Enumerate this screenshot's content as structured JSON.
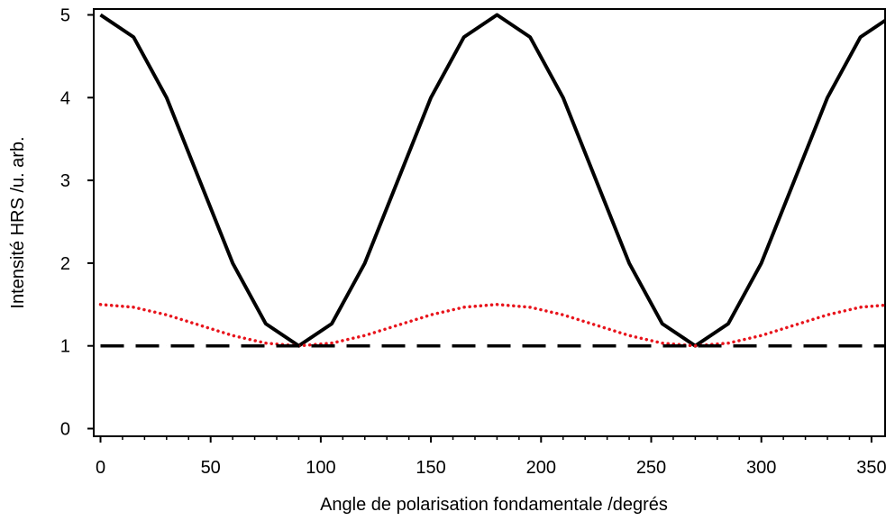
{
  "chart_data": {
    "type": "line",
    "title": "",
    "xlabel": "Angle de polarisation fondamentale /degrés",
    "ylabel": "Intensité HRS /u. arb.",
    "xlim": [
      -2,
      355
    ],
    "ylim": [
      -0.1,
      5.05
    ],
    "xticks": [
      0,
      50,
      100,
      150,
      200,
      250,
      300,
      350
    ],
    "yticks": [
      0,
      1,
      2,
      3,
      4,
      5
    ],
    "grid": false,
    "legend": "none",
    "x": [
      0,
      15,
      30,
      45,
      60,
      75,
      90,
      105,
      120,
      135,
      150,
      165,
      180,
      195,
      210,
      225,
      240,
      255,
      270,
      285,
      300,
      315,
      330,
      345,
      360
    ],
    "series": [
      {
        "color": "#000000",
        "style": "solid",
        "values": [
          5.0,
          4.732,
          4.0,
          3.0,
          2.0,
          1.268,
          1.0,
          1.268,
          2.0,
          3.0,
          4.0,
          4.732,
          5.0,
          4.732,
          4.0,
          3.0,
          2.0,
          1.268,
          1.0,
          1.268,
          2.0,
          3.0,
          4.0,
          4.732,
          5.0
        ]
      },
      {
        "color": "#e8141c",
        "style": "dotted",
        "values": [
          1.5,
          1.467,
          1.375,
          1.25,
          1.125,
          1.033,
          1.0,
          1.033,
          1.125,
          1.25,
          1.375,
          1.467,
          1.5,
          1.467,
          1.375,
          1.25,
          1.125,
          1.033,
          1.0,
          1.033,
          1.125,
          1.25,
          1.375,
          1.467,
          1.5
        ]
      },
      {
        "color": "#000000",
        "style": "dashed",
        "values": [
          1.0,
          1.0,
          1.0,
          1.0,
          1.0,
          1.0,
          1.0,
          1.0,
          1.0,
          1.0,
          1.0,
          1.0,
          1.0,
          1.0,
          1.0,
          1.0,
          1.0,
          1.0,
          1.0,
          1.0,
          1.0,
          1.0,
          1.0,
          1.0,
          1.0
        ]
      }
    ]
  }
}
